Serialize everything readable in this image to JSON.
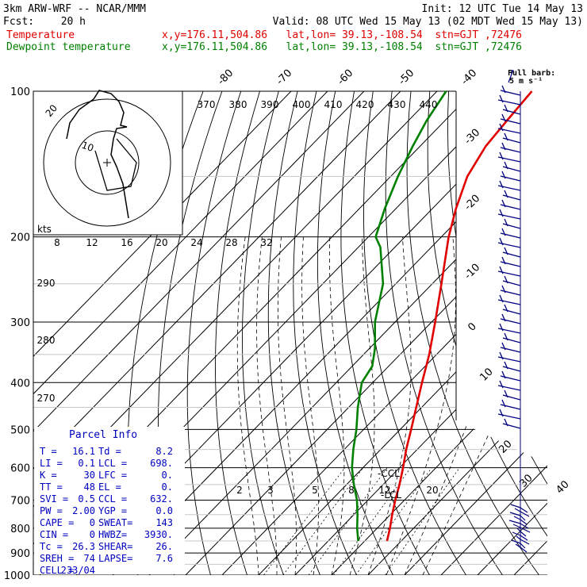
{
  "header": {
    "model": "3km ARW-WRF -- NCAR/MMM",
    "init": "Init: 12 UTC Tue 14 May 13",
    "fcst_label": "Fcst:",
    "fcst_value": "20 h",
    "valid": "Valid: 08 UTC Wed 15 May 13 (02 MDT Wed 15 May 13)"
  },
  "legend": [
    {
      "name": "Temperature",
      "color": "#e00000",
      "info": "x,y=176.11,504.86   lat,lon= 39.13,-108.54  stn=GJT ,72476"
    },
    {
      "name": "Dewpoint temperature",
      "color": "#008000",
      "info": "x,y=176.11,504.86   lat,lon= 39.13,-108.54  stn=GJT ,72476"
    }
  ],
  "barb_label": "Full barb:",
  "barb_unit": "5 m s⁻¹",
  "hodograph": {
    "unit": "kts",
    "ring_labels": [
      "10",
      "20"
    ]
  },
  "parcel_info": {
    "title": "Parcel Info",
    "rows": [
      [
        "T  =",
        "16.1",
        "Td =",
        "8.2"
      ],
      [
        "LI =",
        "0.1",
        "LCL =",
        "698."
      ],
      [
        "K  =",
        "30",
        "LFC =",
        "0."
      ],
      [
        "TT =",
        "48",
        "EL  =",
        "0."
      ],
      [
        "SVI =",
        "0.5",
        "CCL =",
        "632."
      ],
      [
        "PW =",
        "2.00",
        "YGP =",
        "0.0"
      ],
      [
        "CAPE =",
        "0",
        "SWEAT=",
        "143"
      ],
      [
        "CIN =",
        "0",
        "HWBZ=",
        "3930."
      ],
      [
        "Tc =",
        "26.3",
        "SHEAR=",
        "26."
      ],
      [
        "SREH =",
        "74",
        "LAPSE=",
        "7.6"
      ],
      [
        "CELL =",
        "233/04",
        "",
        ""
      ]
    ]
  },
  "markers": {
    "ccl": "-CCL",
    "lcl": "-LCL"
  },
  "chart_data": {
    "type": "line",
    "y_axis": "pressure (hPa), log scale",
    "ylim": [
      1000,
      100
    ],
    "pressure_ticks": [
      "100",
      "200",
      "300",
      "400",
      "500",
      "600",
      "700",
      "800",
      "900",
      "1000"
    ],
    "isotherm_labels": [
      "-80",
      "-70",
      "-60",
      "-50",
      "-40",
      "-30",
      "-20",
      "-10",
      "0",
      "10",
      "20",
      "30",
      "40"
    ],
    "theta_labels_top": [
      "370",
      "380",
      "390",
      "400",
      "410",
      "420",
      "430",
      "440"
    ],
    "theta_labels_left": [
      "290",
      "280",
      "270"
    ],
    "hodo_speed_labels": [
      "8",
      "12",
      "16",
      "20",
      "24",
      "28",
      "32"
    ],
    "mixing_ratio_labels": [
      "2",
      "3",
      "5",
      "8",
      "12",
      "20"
    ],
    "series": [
      {
        "name": "Temperature",
        "color": "#e00000",
        "points": [
          [
            850,
            16.1
          ],
          [
            800,
            13.5
          ],
          [
            750,
            10.5
          ],
          [
            700,
            7.5
          ],
          [
            650,
            4.5
          ],
          [
            600,
            1.0
          ],
          [
            550,
            -3.0
          ],
          [
            500,
            -7.0
          ],
          [
            450,
            -11.5
          ],
          [
            400,
            -16.5
          ],
          [
            350,
            -22.0
          ],
          [
            300,
            -29.0
          ],
          [
            250,
            -37.5
          ],
          [
            200,
            -48.0
          ],
          [
            175,
            -53.5
          ],
          [
            150,
            -59.0
          ],
          [
            130,
            -62.0
          ],
          [
            115,
            -63.0
          ],
          [
            100,
            -64.0
          ]
        ]
      },
      {
        "name": "Dewpoint temperature",
        "color": "#008000",
        "points": [
          [
            850,
            8.2
          ],
          [
            800,
            4.5
          ],
          [
            750,
            1.0
          ],
          [
            700,
            -3.0
          ],
          [
            650,
            -8.0
          ],
          [
            600,
            -13.0
          ],
          [
            550,
            -17.5
          ],
          [
            500,
            -22.0
          ],
          [
            450,
            -27.5
          ],
          [
            400,
            -33.0
          ],
          [
            370,
            -34.5
          ],
          [
            340,
            -38.5
          ],
          [
            300,
            -45.5
          ],
          [
            250,
            -53.5
          ],
          [
            210,
            -64.0
          ],
          [
            200,
            -68.0
          ],
          [
            175,
            -73.0
          ],
          [
            150,
            -78.0
          ],
          [
            130,
            -82.0
          ],
          [
            115,
            -85.0
          ],
          [
            100,
            -87.5
          ]
        ]
      }
    ],
    "grid": true
  }
}
